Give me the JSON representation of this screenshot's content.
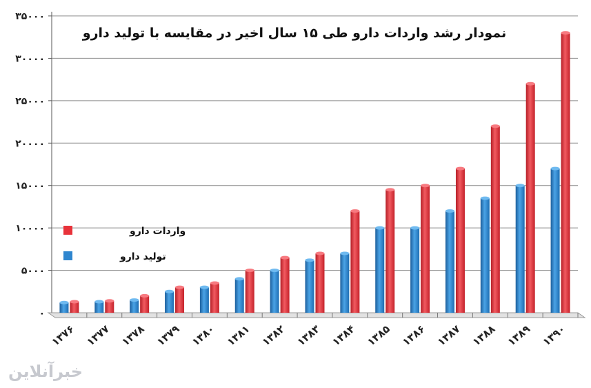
{
  "chart_data": {
    "type": "bar",
    "title": "نمودار رشد واردات دارو طی ۱۵ سال اخیر در مقایسه با تولید دارو",
    "categories": [
      "۱۳۷۶",
      "۱۳۷۷",
      "۱۳۷۸",
      "۱۳۷۹",
      "۱۳۸۰",
      "۱۳۸۱",
      "۱۳۸۲",
      "۱۳۸۳",
      "۱۳۸۴",
      "۱۳۸۵",
      "۱۳۸۶",
      "۱۳۸۷",
      "۱۳۸۸",
      "۱۳۸۹",
      "۱۳۹۰"
    ],
    "series": [
      {
        "name": "تولید دارو",
        "color": "#2e86cf",
        "values": [
          1200,
          1300,
          1500,
          2500,
          3000,
          4000,
          5000,
          6200,
          7000,
          10000,
          10000,
          12000,
          13500,
          15000,
          17000
        ]
      },
      {
        "name": "واردات دارو",
        "color": "#e8323a",
        "values": [
          1300,
          1400,
          2000,
          3000,
          3500,
          5000,
          6500,
          7000,
          12000,
          14500,
          15000,
          17000,
          22000,
          27000,
          33000
        ]
      }
    ],
    "ylim": [
      0,
      35000
    ],
    "y_ticks": [
      0,
      5000,
      10000,
      15000,
      20000,
      25000,
      30000,
      35000
    ],
    "y_tick_labels": [
      "۰",
      "۵۰۰۰",
      "۱۰۰۰۰",
      "۱۵۰۰۰",
      "۲۰۰۰۰",
      "۲۵۰۰۰",
      "۳۰۰۰۰",
      "۳۵۰۰۰"
    ],
    "grid": true,
    "legend": {
      "position": "left",
      "entries": [
        "واردات دارو",
        "تولید دارو"
      ]
    }
  },
  "watermark": "خبرآنلاین"
}
